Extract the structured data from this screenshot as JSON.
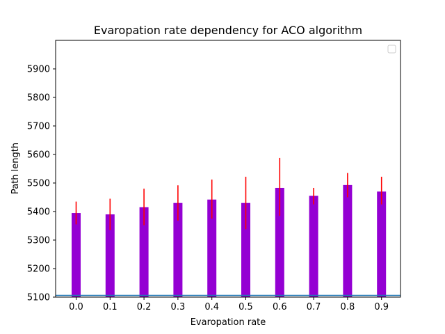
{
  "chart_data": {
    "type": "bar",
    "title": "Evaropation rate dependency for ACO algorithm",
    "xlabel": "Evaropation rate",
    "ylabel": "Path length",
    "categories": [
      "0.0",
      "0.1",
      "0.2",
      "0.3",
      "0.4",
      "0.5",
      "0.6",
      "0.7",
      "0.8",
      "0.9"
    ],
    "values": [
      5395,
      5390,
      5415,
      5430,
      5442,
      5430,
      5483,
      5455,
      5493,
      5470
    ],
    "error_low": [
      5355,
      5335,
      5352,
      5368,
      5375,
      5338,
      5385,
      5425,
      5450,
      5425
    ],
    "error_high": [
      5435,
      5445,
      5480,
      5492,
      5512,
      5522,
      5588,
      5483,
      5535,
      5522
    ],
    "yticks": [
      5100,
      5200,
      5300,
      5400,
      5500,
      5600,
      5700,
      5800,
      5900
    ],
    "ylim": [
      5100,
      6000
    ],
    "reference_line": 5106,
    "legend": "top-right",
    "grid": false,
    "colors": {
      "bar": "#9400d3",
      "error_bar": "#ff0000",
      "reference_line": "#1f77b4"
    }
  }
}
